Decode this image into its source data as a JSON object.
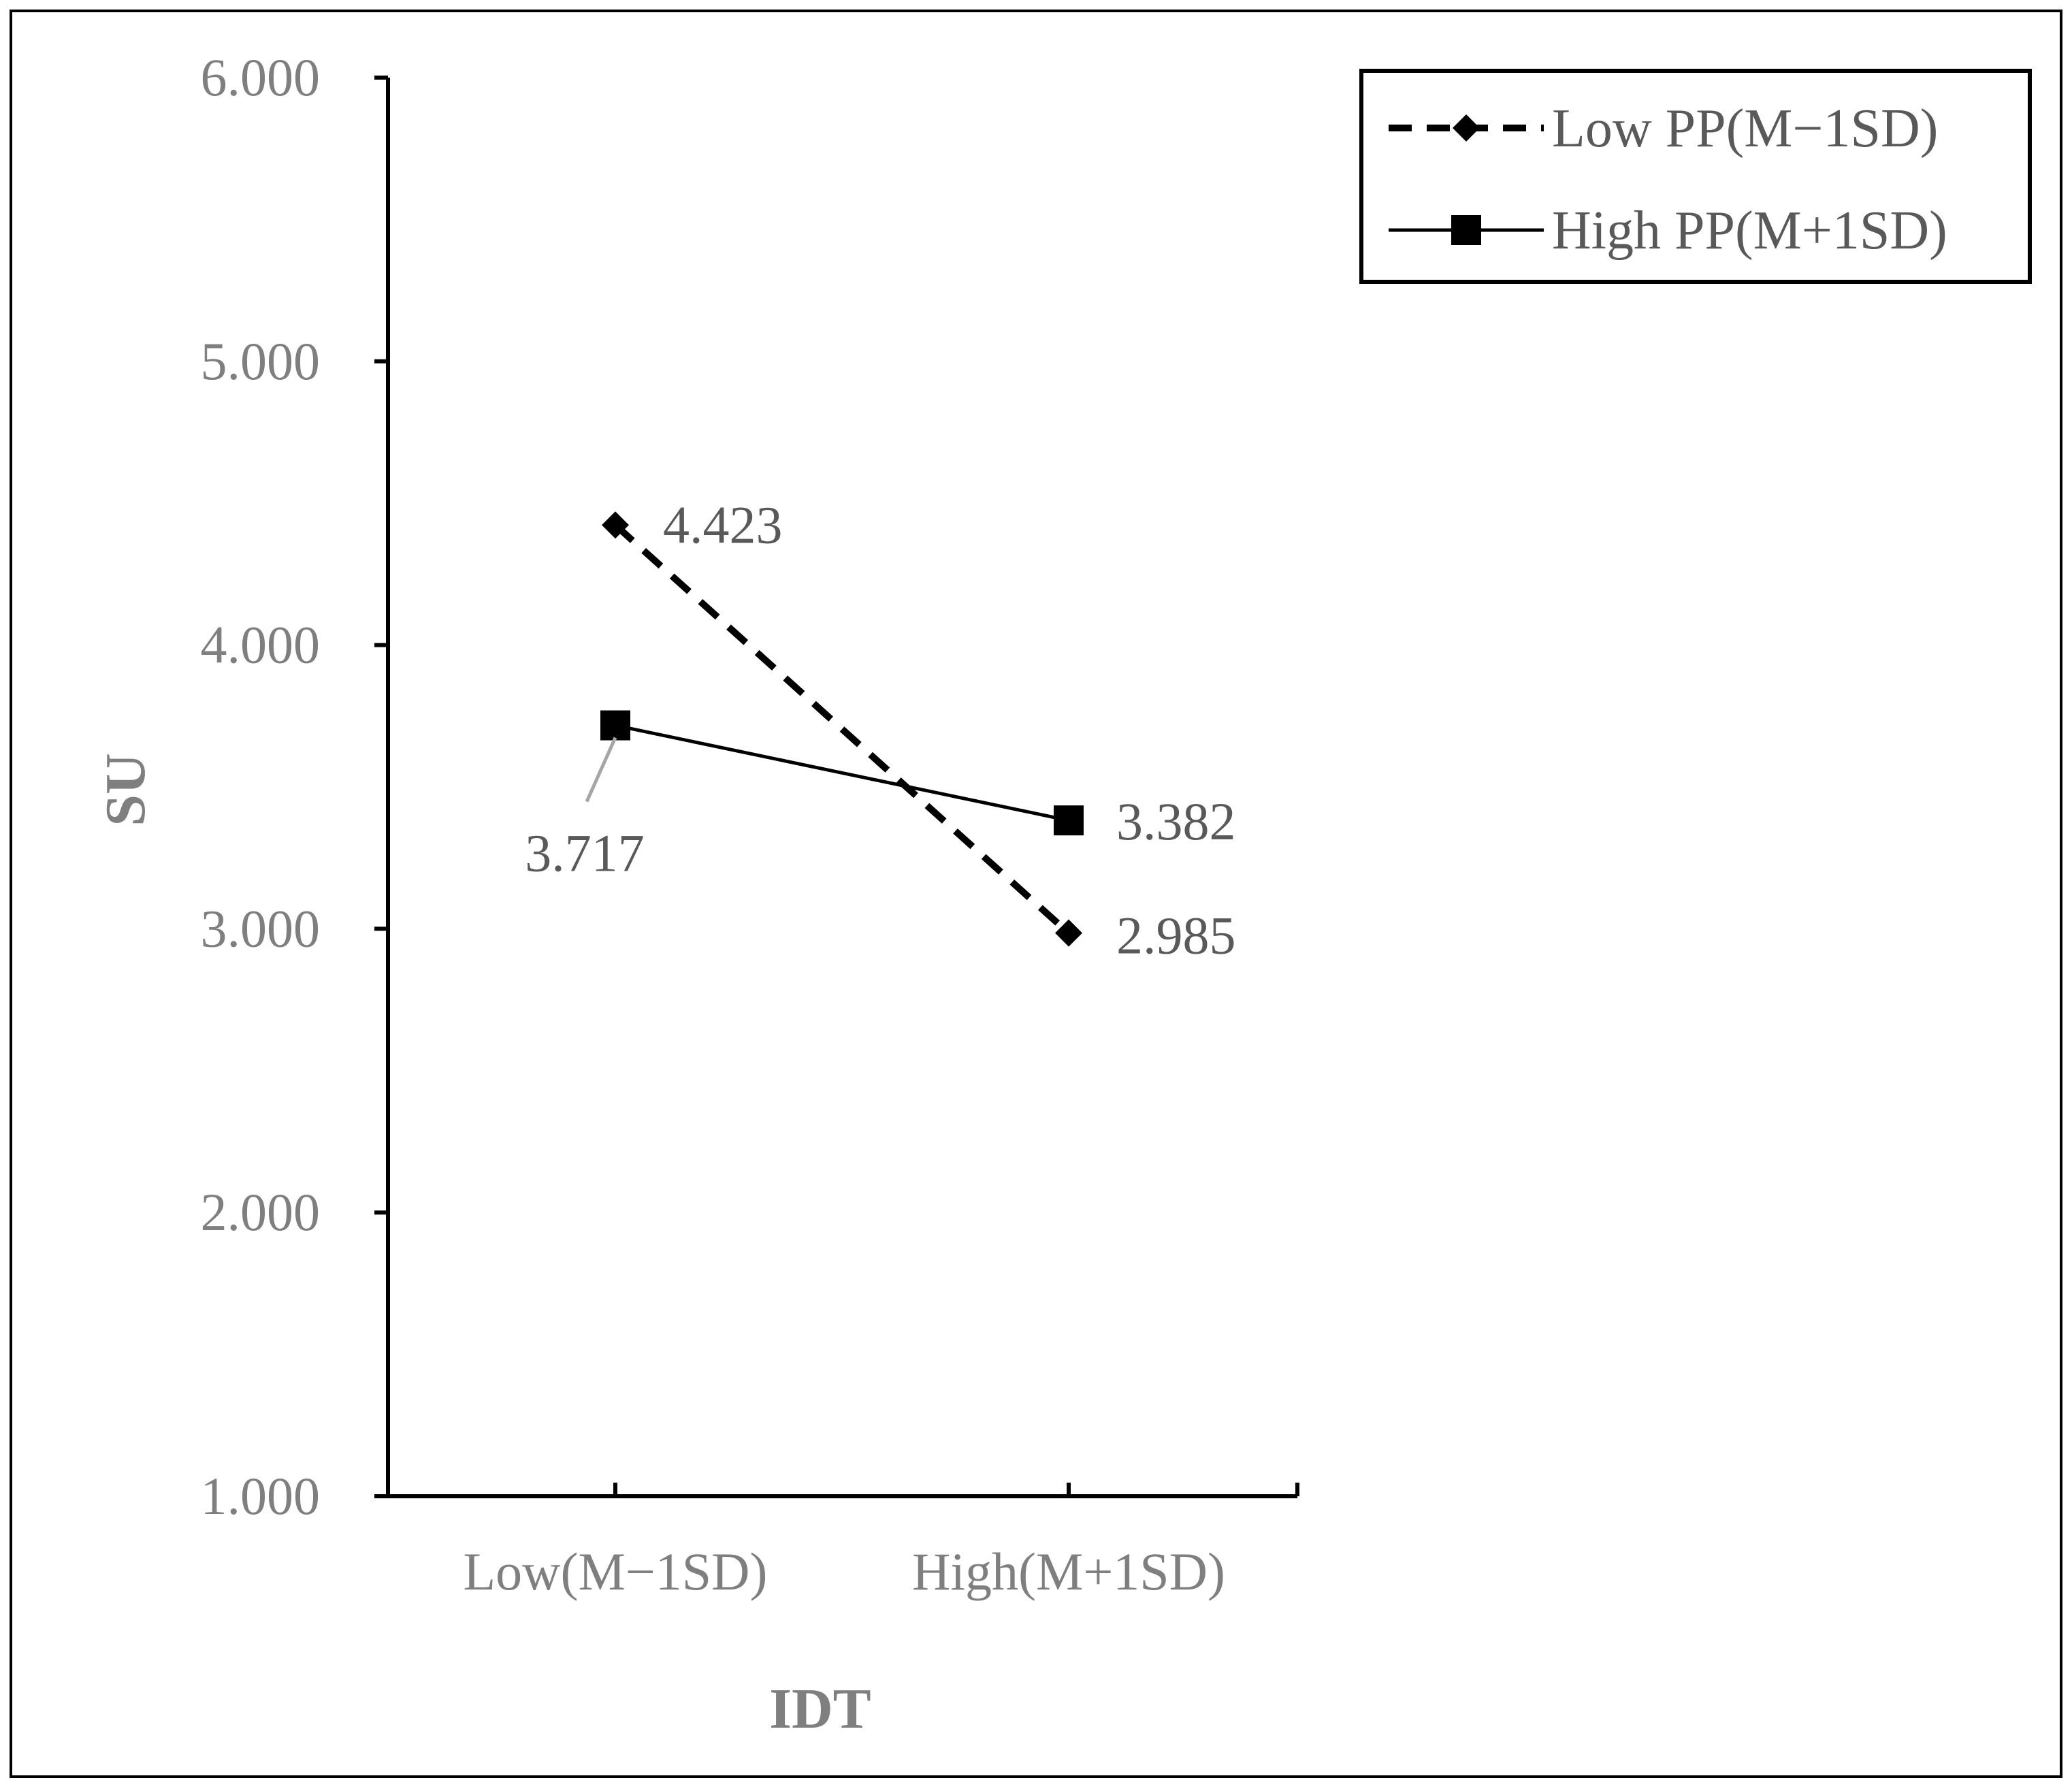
{
  "chart_data": {
    "type": "line",
    "title": "",
    "xlabel": "IDT",
    "ylabel": "SU",
    "categories": [
      "Low(M−1SD)",
      "High(M+1SD)"
    ],
    "ylim": [
      1,
      6
    ],
    "yticks": [
      "1.000",
      "2.000",
      "3.000",
      "4.000",
      "5.000",
      "6.000"
    ],
    "grid": false,
    "legend_position": "top-right",
    "series": [
      {
        "name": "Low PP(M−1SD)",
        "values": [
          4.423,
          2.985
        ],
        "value_labels": [
          "4.423",
          "2.985"
        ],
        "line_style": "dashed",
        "marker": "diamond",
        "color": "#000000"
      },
      {
        "name": "High PP(M+1SD)",
        "values": [
          3.717,
          3.382
        ],
        "value_labels": [
          "3.717",
          "3.382"
        ],
        "line_style": "solid",
        "marker": "square",
        "color": "#000000"
      }
    ]
  }
}
